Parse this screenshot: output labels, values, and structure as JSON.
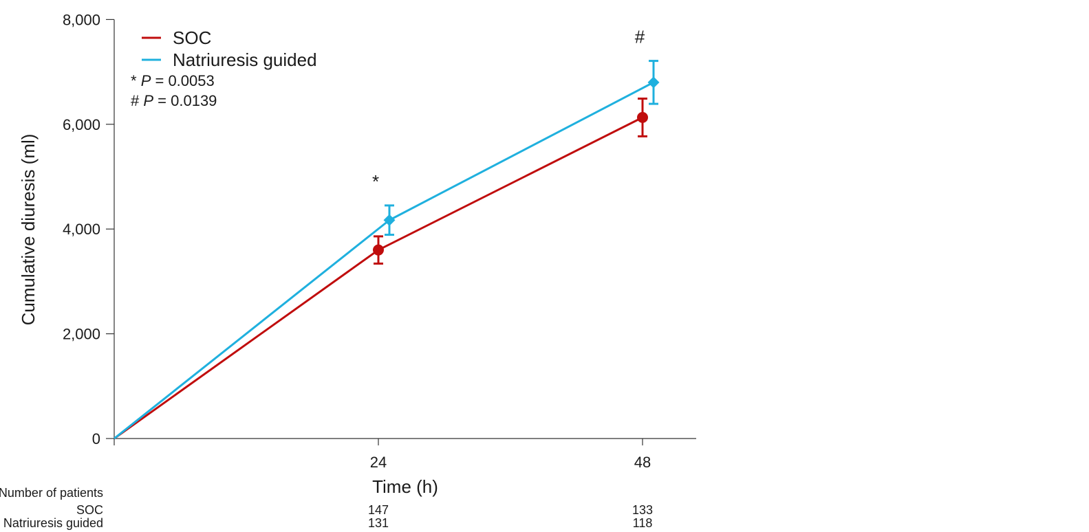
{
  "chart_data": {
    "type": "line",
    "x": [
      0,
      24,
      48
    ],
    "xticks": [
      "24",
      "48"
    ],
    "xlabel": "Time (h)",
    "ylabel": "Cumulative diuresis (ml)",
    "ylim": [
      0,
      8000
    ],
    "yticks": [
      "0",
      "2,000",
      "4,000",
      "6,000",
      "8,000"
    ],
    "ytick_values": [
      0,
      2000,
      4000,
      6000,
      8000
    ],
    "grid": false,
    "legend_position": "top-left",
    "series": [
      {
        "name": "SOC",
        "color": "#c00d0d",
        "marker": "circle",
        "values": [
          0,
          3600,
          6130
        ],
        "error": [
          null,
          260,
          360
        ]
      },
      {
        "name": "Natriuresis guided",
        "color": "#1fb0de",
        "marker": "diamond",
        "values": [
          0,
          4170,
          6800
        ],
        "error": [
          null,
          280,
          410
        ]
      }
    ],
    "annotations": [
      {
        "symbol": "*",
        "x": 24,
        "text_symbol": "*",
        "text_p": "P",
        "text_value": " = 0.0053"
      },
      {
        "symbol": "#",
        "x": 48,
        "text_symbol": "#",
        "text_p": "P",
        "text_value": " = 0.0139"
      }
    ],
    "patients_table": {
      "title": "Number of patients",
      "rows": [
        {
          "label": "SOC",
          "values": [
            "147",
            "133"
          ]
        },
        {
          "label": "Natriuresis guided",
          "values": [
            "131",
            "118"
          ]
        }
      ]
    }
  }
}
